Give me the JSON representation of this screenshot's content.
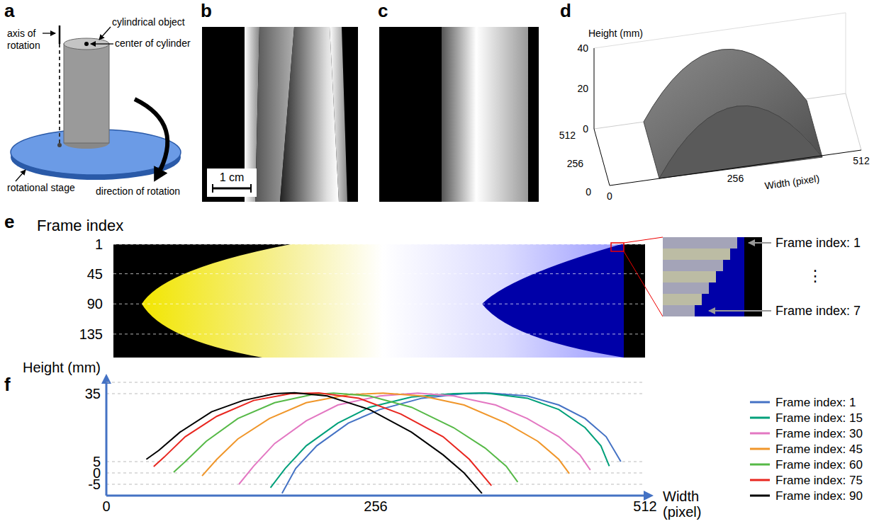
{
  "panels": {
    "a": {
      "label": "a",
      "axis_of_rotation": "axis of rotation",
      "cylindrical_object": "cylindrical object",
      "center_of_cylinder": "center of cylinder",
      "rotational_stage": "rotational stage",
      "direction_of_rotation": "direction of rotation"
    },
    "b": {
      "label": "b",
      "scale_bar": "1 cm"
    },
    "c": {
      "label": "c"
    },
    "d": {
      "label": "d",
      "z_title": "Height (mm)",
      "z_lim": [
        0,
        40
      ],
      "z_ticks": [
        0,
        20,
        40
      ],
      "depth_lim": [
        0,
        512
      ],
      "depth_ticks": [
        0,
        256,
        512
      ],
      "width_title": "Width (pixel)",
      "width_lim": [
        0,
        512
      ],
      "width_ticks": [
        0,
        256,
        512
      ]
    },
    "e": {
      "label": "e",
      "title": "Frame index",
      "ylim": [
        1,
        170
      ],
      "yticks": [
        1,
        45,
        90,
        135
      ],
      "inset_labels": [
        "Frame index: 1",
        "⋮",
        "Frame index: 7"
      ]
    },
    "f": {
      "label": "f"
    }
  },
  "chart_data": {
    "type": "line",
    "x_label": "Width (pixel)",
    "y_label": "Height (mm)",
    "xlim": [
      0,
      512
    ],
    "xticks": [
      0,
      256,
      512
    ],
    "ylim": [
      -10,
      40
    ],
    "yticks": [
      -5,
      0,
      5,
      35
    ],
    "grid": true,
    "legend": "right",
    "series": [
      {
        "name": "Frame index: 1",
        "color": "#4472c4",
        "x": [
          167,
          180,
          200,
          230,
          260,
          300,
          340,
          364,
          400,
          430,
          455,
          475,
          489
        ],
        "values": [
          -9,
          2,
          12,
          22,
          28,
          33,
          35,
          35.2,
          34,
          30,
          24,
          16,
          5
        ]
      },
      {
        "name": "Frame index: 15",
        "color": "#00a07a",
        "x": [
          156,
          170,
          190,
          220,
          250,
          290,
          330,
          360,
          400,
          430,
          455,
          470,
          478
        ],
        "values": [
          -6.5,
          2,
          12,
          22,
          29,
          33.5,
          35,
          35.3,
          33,
          28,
          20,
          12,
          3
        ]
      },
      {
        "name": "Frame index: 30",
        "color": "#e377c2",
        "x": [
          126,
          140,
          160,
          190,
          220,
          260,
          296,
          330,
          370,
          400,
          430,
          450,
          460
        ],
        "values": [
          -5,
          3,
          13,
          23,
          30,
          34,
          35.2,
          34,
          30,
          24,
          16,
          8,
          1.3
        ]
      },
      {
        "name": "Frame index: 45",
        "color": "#f0962a",
        "x": [
          91,
          105,
          125,
          155,
          190,
          230,
          263,
          300,
          340,
          380,
          410,
          430,
          440
        ],
        "values": [
          -1.3,
          6,
          15,
          24,
          31,
          34.5,
          35.2,
          34,
          30,
          22,
          14,
          6,
          -0.3
        ]
      },
      {
        "name": "Frame index: 60",
        "color": "#56b947",
        "x": [
          64,
          75,
          95,
          125,
          160,
          195,
          216,
          250,
          290,
          330,
          360,
          380,
          391
        ],
        "values": [
          0.3,
          5,
          14,
          24,
          31,
          34.5,
          35.2,
          34,
          29,
          20,
          11,
          3,
          -4
        ]
      },
      {
        "name": "Frame index: 75",
        "color": "#e8261f",
        "x": [
          45,
          55,
          75,
          105,
          140,
          175,
          202,
          240,
          280,
          320,
          345,
          366
        ],
        "values": [
          2.8,
          7,
          16,
          25,
          32,
          35,
          35.3,
          33,
          26,
          16,
          6,
          -5.6
        ]
      },
      {
        "name": "Frame index: 90",
        "color": "#000000",
        "x": [
          38,
          50,
          70,
          100,
          130,
          160,
          179,
          210,
          250,
          290,
          320,
          340,
          357
        ],
        "values": [
          6,
          10,
          18,
          27,
          32,
          35,
          35.4,
          34,
          28,
          18,
          8,
          0,
          -9
        ]
      }
    ]
  }
}
